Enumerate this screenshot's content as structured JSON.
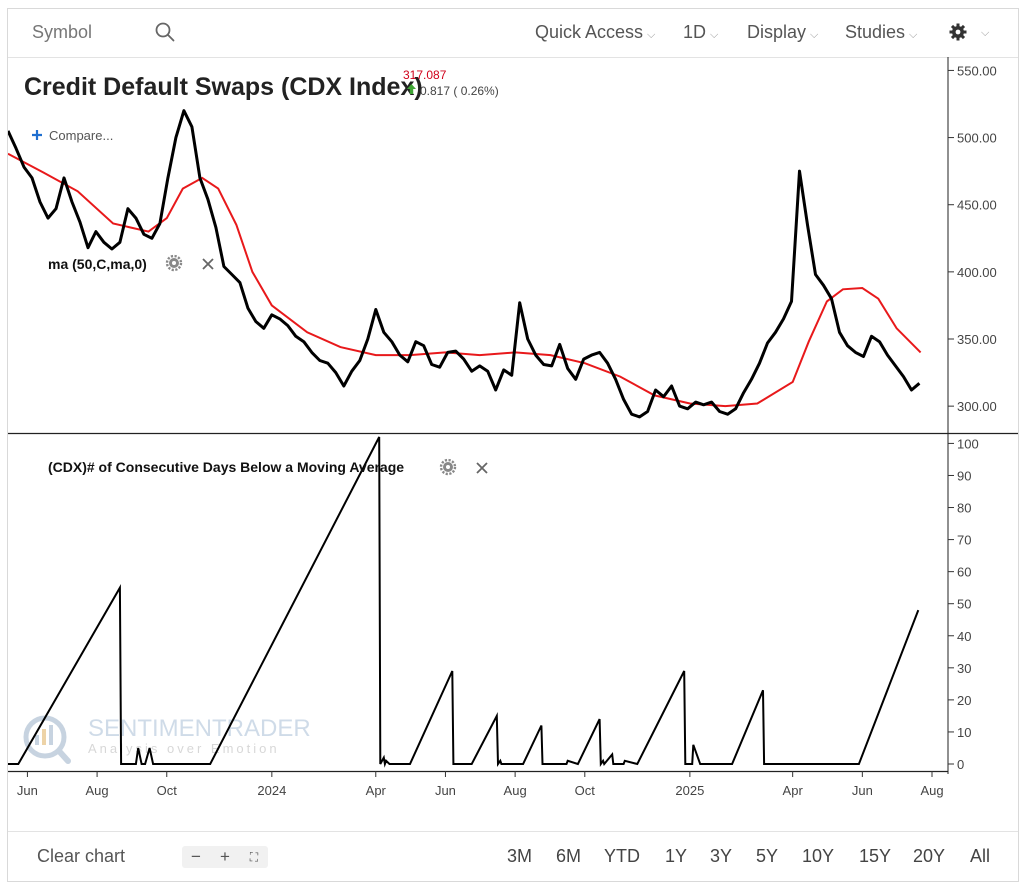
{
  "toolbar": {
    "symbol_placeholder": "Symbol",
    "quick_access": "Quick Access",
    "interval": "1D",
    "display": "Display",
    "studies": "Studies"
  },
  "header": {
    "title": "Credit Default Swaps (CDX Index)",
    "last_price": "317.087",
    "change": "0.817 ( 0.26%)",
    "compare": "Compare..."
  },
  "colors": {
    "price": "#000000",
    "ma": "#e8191b",
    "last_price": "#d0021b",
    "up": "#3fa535"
  },
  "study_labels": {
    "ma": "ma (50,C,ma,0)",
    "consec": "(CDX)# of Consecutive Days Below a Moving Average"
  },
  "watermark": {
    "brand": "SENTIMENTRADER",
    "tagline": "Analysis over Emotion"
  },
  "bottom": {
    "clear_chart": "Clear chart",
    "zoom_out": "−",
    "zoom_in": "+",
    "fullscreen": "⛶",
    "ranges": [
      "3M",
      "6M",
      "YTD",
      "1Y",
      "3Y",
      "5Y",
      "10Y",
      "15Y",
      "20Y",
      "All"
    ]
  },
  "chart_data": [
    {
      "type": "line",
      "title": "Credit Default Swaps (CDX Index)",
      "y_ticks": [
        300,
        350,
        400,
        450,
        500,
        550
      ],
      "y_tick_labels": [
        "300.00",
        "350.00",
        "400.00",
        "450.00",
        "500.00",
        "550.00"
      ],
      "ylim": [
        280,
        560
      ],
      "xlim": [
        "2023-05-15",
        "2025-08-15"
      ],
      "x_ticks": [
        "2023-06",
        "2023-08",
        "2023-10",
        "2024-01",
        "2024-04",
        "2024-06",
        "2024-08",
        "2024-10",
        "2025-01",
        "2025-04",
        "2025-06",
        "2025-08"
      ],
      "x_tick_labels": [
        "Jun",
        "Aug",
        "Oct",
        "2024",
        "Apr",
        "Jun",
        "Aug",
        "Oct",
        "2025",
        "Apr",
        "Jun",
        "Aug"
      ],
      "series": [
        {
          "name": "CDX",
          "x": [
            "2023-05-15",
            "2023-05-22",
            "2023-05-29",
            "2023-06-05",
            "2023-06-12",
            "2023-06-19",
            "2023-06-26",
            "2023-07-03",
            "2023-07-10",
            "2023-07-17",
            "2023-07-24",
            "2023-07-31",
            "2023-08-07",
            "2023-08-14",
            "2023-08-21",
            "2023-08-28",
            "2023-09-04",
            "2023-09-11",
            "2023-09-18",
            "2023-09-25",
            "2023-10-02",
            "2023-10-09",
            "2023-10-16",
            "2023-10-23",
            "2023-10-30",
            "2023-11-06",
            "2023-11-13",
            "2023-11-20",
            "2023-11-27",
            "2023-12-04",
            "2023-12-11",
            "2023-12-18",
            "2023-12-25",
            "2024-01-01",
            "2024-01-08",
            "2024-01-15",
            "2024-01-22",
            "2024-01-29",
            "2024-02-05",
            "2024-02-12",
            "2024-02-19",
            "2024-02-26",
            "2024-03-04",
            "2024-03-11",
            "2024-03-18",
            "2024-03-25",
            "2024-04-01",
            "2024-04-08",
            "2024-04-15",
            "2024-04-22",
            "2024-04-29",
            "2024-05-06",
            "2024-05-13",
            "2024-05-20",
            "2024-05-27",
            "2024-06-03",
            "2024-06-10",
            "2024-06-17",
            "2024-06-24",
            "2024-07-01",
            "2024-07-08",
            "2024-07-15",
            "2024-07-22",
            "2024-07-29",
            "2024-08-05",
            "2024-08-12",
            "2024-08-19",
            "2024-08-26",
            "2024-09-02",
            "2024-09-09",
            "2024-09-16",
            "2024-09-23",
            "2024-09-30",
            "2024-10-07",
            "2024-10-14",
            "2024-10-21",
            "2024-10-28",
            "2024-11-04",
            "2024-11-11",
            "2024-11-18",
            "2024-11-25",
            "2024-12-02",
            "2024-12-09",
            "2024-12-16",
            "2024-12-23",
            "2024-12-30",
            "2025-01-06",
            "2025-01-13",
            "2025-01-20",
            "2025-01-27",
            "2025-02-03",
            "2025-02-10",
            "2025-02-17",
            "2025-02-24",
            "2025-03-03",
            "2025-03-10",
            "2025-03-17",
            "2025-03-24",
            "2025-03-31",
            "2025-04-07",
            "2025-04-14",
            "2025-04-21",
            "2025-04-28",
            "2025-05-05",
            "2025-05-12",
            "2025-05-19",
            "2025-05-26",
            "2025-06-02",
            "2025-06-09",
            "2025-06-16",
            "2025-06-23",
            "2025-06-30",
            "2025-07-07",
            "2025-07-14",
            "2025-07-21"
          ],
          "values": [
            505,
            492,
            478,
            470,
            452,
            440,
            447,
            470,
            452,
            437,
            418,
            430,
            422,
            417,
            422,
            447,
            440,
            428,
            425,
            436,
            470,
            500,
            520,
            508,
            470,
            454,
            433,
            404,
            398,
            392,
            373,
            363,
            358,
            368,
            365,
            360,
            352,
            348,
            340,
            334,
            332,
            325,
            315,
            326,
            334,
            350,
            372,
            355,
            348,
            338,
            333,
            348,
            345,
            331,
            329,
            340,
            341,
            335,
            326,
            330,
            326,
            312,
            327,
            323,
            377,
            350,
            338,
            331,
            330,
            346,
            328,
            320,
            335,
            338,
            340,
            332,
            320,
            305,
            294,
            292,
            296,
            312,
            307,
            315,
            300,
            298,
            303,
            301,
            303,
            296,
            294,
            298,
            310,
            320,
            332,
            347,
            355,
            365,
            378,
            475,
            435,
            398,
            390,
            380,
            355,
            345,
            340,
            337,
            352,
            348,
            338,
            330,
            322,
            312,
            317
          ]
        },
        {
          "name": "ma (50,C,ma,0)",
          "x": [
            "2023-05-15",
            "2023-06-15",
            "2023-07-15",
            "2023-08-15",
            "2023-09-15",
            "2023-10-01",
            "2023-10-15",
            "2023-11-01",
            "2023-11-15",
            "2023-12-01",
            "2023-12-15",
            "2024-01-01",
            "2024-02-01",
            "2024-03-01",
            "2024-04-01",
            "2024-05-01",
            "2024-06-01",
            "2024-07-01",
            "2024-08-01",
            "2024-09-01",
            "2024-10-01",
            "2024-11-01",
            "2024-12-01",
            "2025-01-01",
            "2025-02-01",
            "2025-03-01",
            "2025-04-01",
            "2025-04-15",
            "2025-05-01",
            "2025-05-15",
            "2025-06-01",
            "2025-06-15",
            "2025-07-01",
            "2025-07-22"
          ],
          "values": [
            488,
            474,
            460,
            436,
            430,
            440,
            462,
            470,
            462,
            435,
            400,
            375,
            355,
            344,
            338,
            338,
            340,
            338,
            340,
            338,
            332,
            322,
            308,
            302,
            300,
            302,
            318,
            348,
            378,
            387,
            388,
            380,
            358,
            340
          ]
        }
      ]
    },
    {
      "type": "line",
      "title": "(CDX)# of Consecutive Days Below a Moving Average",
      "y_ticks": [
        0,
        10,
        20,
        30,
        40,
        50,
        60,
        70,
        80,
        90,
        100
      ],
      "y_tick_labels": [
        "0",
        "10",
        "20",
        "30",
        "40",
        "50",
        "60",
        "70",
        "80",
        "90",
        "100"
      ],
      "ylim": [
        0,
        102
      ],
      "xlim": [
        "2023-05-15",
        "2025-08-15"
      ],
      "series": [
        {
          "name": "(CDX)# of Consecutive Days Below a Moving Average",
          "x": [
            "2023-05-15",
            "2023-05-24",
            "2023-08-21",
            "2023-08-22",
            "2023-09-04",
            "2023-09-06",
            "2023-09-09",
            "2023-09-12",
            "2023-09-16",
            "2023-09-19",
            "2023-11-08",
            "2024-04-04",
            "2024-04-05",
            "2024-04-08",
            "2024-04-09",
            "2024-04-10",
            "2024-04-13",
            "2024-05-01",
            "2024-06-07",
            "2024-06-08",
            "2024-06-24",
            "2024-07-16",
            "2024-07-17",
            "2024-07-19",
            "2024-07-20",
            "2024-08-08",
            "2024-08-24",
            "2024-08-25",
            "2024-09-15",
            "2024-09-16",
            "2024-09-25",
            "2024-10-14",
            "2024-10-15",
            "2024-10-17",
            "2024-10-18",
            "2024-10-25",
            "2024-10-26",
            "2024-11-04",
            "2024-11-05",
            "2024-11-16",
            "2024-12-27",
            "2024-12-28",
            "2025-01-03",
            "2025-01-04",
            "2025-01-10",
            "2025-01-12",
            "2025-02-05",
            "2025-02-07",
            "2025-03-06",
            "2025-03-07",
            "2025-05-29",
            "2025-07-20"
          ],
          "values": [
            0,
            0,
            55,
            0,
            0,
            5,
            0,
            0,
            5,
            0,
            0,
            102,
            0,
            2,
            0,
            1,
            0,
            0,
            29,
            0,
            0,
            15,
            0,
            1,
            0,
            0,
            12,
            0,
            0,
            1,
            0,
            14,
            0,
            1,
            0,
            3,
            0,
            0,
            1,
            0,
            29,
            0,
            0,
            6,
            0,
            0,
            0,
            0,
            23,
            0,
            0,
            48
          ]
        }
      ]
    }
  ]
}
